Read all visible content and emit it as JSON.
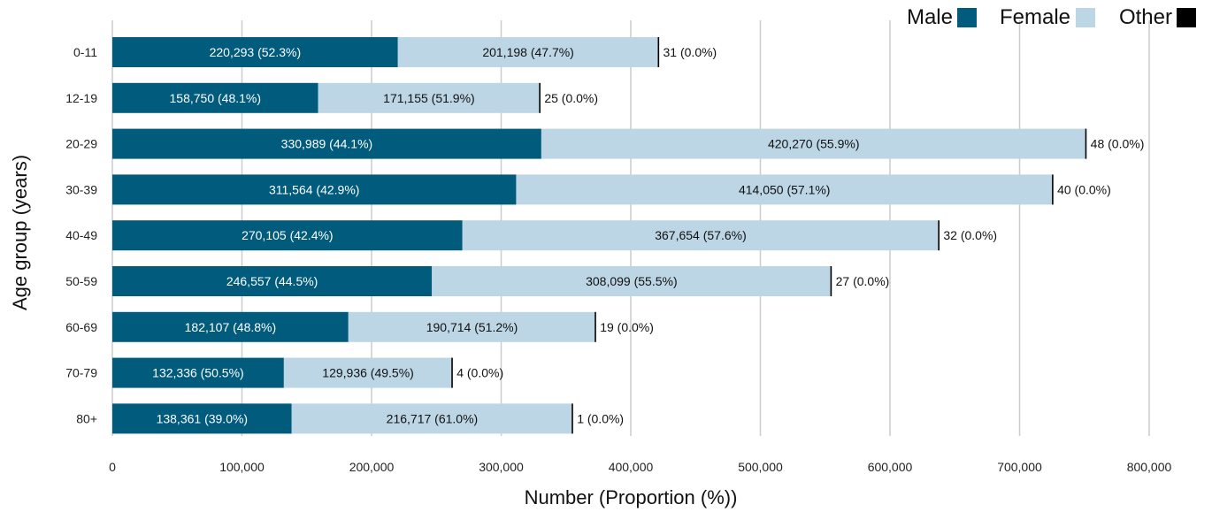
{
  "chart_data": {
    "type": "bar",
    "orientation": "horizontal",
    "stacked": true,
    "title": "",
    "xlabel": "Number (Proportion (%))",
    "ylabel": "Age group (years)",
    "xlim": [
      0,
      800000
    ],
    "x_ticks": [
      0,
      100000,
      200000,
      300000,
      400000,
      500000,
      600000,
      700000,
      800000
    ],
    "x_tick_labels": [
      "0",
      "100,000",
      "200,000",
      "300,000",
      "400,000",
      "500,000",
      "600,000",
      "700,000",
      "800,000"
    ],
    "grid": "vertical",
    "legend_position": "top-right",
    "categories": [
      "0-11",
      "12-19",
      "20-29",
      "30-39",
      "40-49",
      "50-59",
      "60-69",
      "70-79",
      "80+"
    ],
    "series": [
      {
        "name": "Male",
        "color": "#015b7c",
        "label_color": "#ffffff",
        "values": [
          220293,
          158750,
          330989,
          311564,
          270105,
          246557,
          182107,
          132336,
          138361
        ],
        "labels": [
          "220,293 (52.3%)",
          "158,750 (48.1%)",
          "330,989 (44.1%)",
          "311,564 (42.9%)",
          "270,105 (42.4%)",
          "246,557 (44.5%)",
          "182,107 (48.8%)",
          "132,336 (50.5%)",
          "138,361 (39.0%)"
        ]
      },
      {
        "name": "Female",
        "color": "#bcd6e5",
        "label_color": "#111111",
        "values": [
          201198,
          171155,
          420270,
          414050,
          367654,
          308099,
          190714,
          129936,
          216717
        ],
        "labels": [
          "201,198 (47.7%)",
          "171,155 (51.9%)",
          "420,270 (55.9%)",
          "414,050 (57.1%)",
          "367,654 (57.6%)",
          "308,099 (55.5%)",
          "190,714 (51.2%)",
          "129,936 (49.5%)",
          "216,717 (61.0%)"
        ]
      },
      {
        "name": "Other",
        "color": "#000000",
        "label_color": "#111111",
        "values": [
          31,
          25,
          48,
          40,
          32,
          27,
          19,
          4,
          1
        ],
        "labels": [
          "31 (0.0%)",
          "25 (0.0%)",
          "48 (0.0%)",
          "40 (0.0%)",
          "32 (0.0%)",
          "27 (0.0%)",
          "19 (0.0%)",
          "4 (0.0%)",
          "1 (0.0%)"
        ]
      }
    ]
  }
}
